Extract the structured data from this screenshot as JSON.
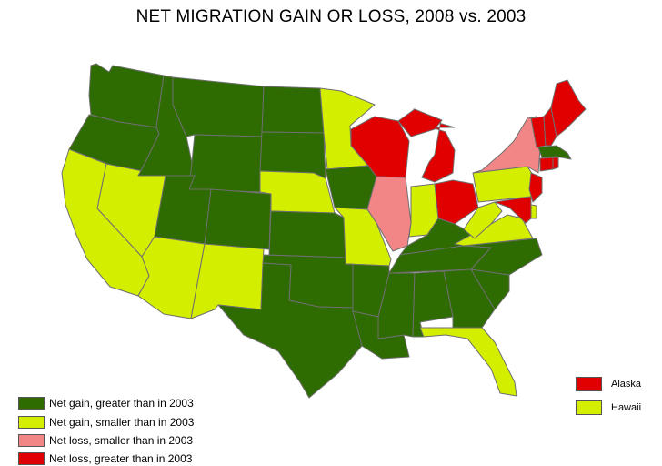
{
  "title": "NET MIGRATION GAIN OR LOSS, 2008 vs. 2003",
  "colors": {
    "gain_greater": "#2e6b00",
    "gain_smaller": "#d4ee00",
    "loss_smaller": "#f28686",
    "loss_greater": "#e00000"
  },
  "legend": [
    {
      "label": "Net gain, greater than in 2003",
      "category": "gain_greater"
    },
    {
      "label": "Net gain, smaller than in  2003",
      "category": "gain_smaller"
    },
    {
      "label": "Net loss, smaller than in 2003",
      "category": "loss_smaller"
    },
    {
      "label": "Net loss, greater than in 2003",
      "category": "loss_greater"
    }
  ],
  "insets": [
    {
      "label": "Alaska",
      "category": "loss_greater"
    },
    {
      "label": "Hawaii",
      "category": "gain_smaller"
    }
  ],
  "states": {
    "WA": "gain_greater",
    "OR": "gain_greater",
    "CA": "gain_smaller",
    "NV": "gain_smaller",
    "ID": "gain_greater",
    "MT": "gain_greater",
    "WY": "gain_greater",
    "UT": "gain_greater",
    "AZ": "gain_smaller",
    "NM": "gain_smaller",
    "CO": "gain_greater",
    "ND": "gain_greater",
    "SD": "gain_greater",
    "NE": "gain_smaller",
    "KS": "gain_greater",
    "OK": "gain_greater",
    "TX": "gain_greater",
    "MN": "gain_smaller",
    "IA": "gain_greater",
    "MO": "gain_smaller",
    "AR": "gain_greater",
    "LA": "gain_greater",
    "WI": "loss_greater",
    "IL": "loss_smaller",
    "MI": "loss_greater",
    "IN": "gain_smaller",
    "OH": "loss_greater",
    "KY": "gain_greater",
    "TN": "gain_greater",
    "MS": "gain_greater",
    "AL": "gain_greater",
    "GA": "gain_greater",
    "FL": "gain_smaller",
    "SC": "gain_greater",
    "NC": "gain_greater",
    "VA": "gain_smaller",
    "WV": "gain_smaller",
    "PA": "gain_smaller",
    "NY": "loss_smaller",
    "NJ": "loss_greater",
    "DE": "gain_smaller",
    "MD": "loss_greater",
    "VT": "loss_greater",
    "NH": "loss_greater",
    "ME": "loss_greater",
    "MA": "gain_greater",
    "CT": "loss_greater",
    "RI": "loss_greater"
  }
}
